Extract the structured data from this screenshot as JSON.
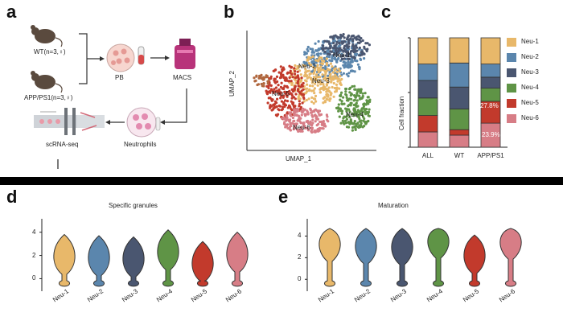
{
  "panel_a": {
    "label": "a",
    "wt": "WT(n=3,♀)",
    "app": "APP/PS1(n=3,♀)",
    "pb": "PB",
    "macs": "MACS",
    "neutrophils": "Neutrophils",
    "scrnaseq": "scRNA-seq",
    "icons": [
      "mouse-icon",
      "mouse-icon",
      "blood-dish-icon",
      "tube-icon",
      "macs-column-icon",
      "neutrophil-dish-icon",
      "sequencer-icon"
    ]
  },
  "panel_b": {
    "label": "b",
    "xlabel": "UMAP_1",
    "ylabel": "UMAP_2",
    "clusters": [
      "Neu-1",
      "Neu-2",
      "Neu-3",
      "Neu-4",
      "Neu-5",
      "Neu-6"
    ]
  },
  "panel_c": {
    "label": "c",
    "ylabel": "Cell fraction",
    "legend": [
      "Neu-1",
      "Neu-2",
      "Neu-3",
      "Neu-4",
      "Neu-5",
      "Neu-6"
    ],
    "colors": [
      "#e8b86a",
      "#5b86ad",
      "#4a5670",
      "#5f9446",
      "#c23a2c",
      "#d77d86"
    ]
  },
  "panel_d": {
    "label": "d",
    "title": "Specific granules"
  },
  "panel_e": {
    "label": "e",
    "title": "Maturation"
  },
  "chart_data": [
    {
      "type": "bar",
      "ylabel": "Cell fraction",
      "categories": [
        "ALL",
        "WT",
        "APP/PS1"
      ],
      "series": [
        {
          "name": "Neu-1",
          "values": [
            0.24,
            0.23,
            0.24
          ]
        },
        {
          "name": "Neu-2",
          "values": [
            0.15,
            0.22,
            0.12
          ]
        },
        {
          "name": "Neu-3",
          "values": [
            0.16,
            0.2,
            0.1
          ]
        },
        {
          "name": "Neu-4",
          "values": [
            0.16,
            0.19,
            0.12
          ]
        },
        {
          "name": "Neu-5",
          "values": [
            0.15,
            0.05,
            0.2
          ]
        },
        {
          "name": "Neu-6",
          "values": [
            0.14,
            0.11,
            0.22
          ]
        }
      ],
      "annotations": [
        "27.8%",
        "23.9%"
      ],
      "ylim": [
        0,
        1
      ]
    },
    {
      "type": "violin",
      "title": "Specific granules",
      "categories": [
        "Neu-1",
        "Neu-2",
        "Neu-3",
        "Neu-4",
        "Neu-5",
        "Neu-6"
      ],
      "yticks": [
        0,
        2,
        4
      ],
      "ylim": [
        -0.8,
        4.6
      ],
      "colors": [
        "#e8b86a",
        "#5b86ad",
        "#4a5670",
        "#5f9446",
        "#c23a2c",
        "#d77d86"
      ],
      "medians": [
        1.9,
        1.8,
        1.7,
        2.3,
        1.3,
        2.1
      ]
    },
    {
      "type": "violin",
      "title": "Maturation",
      "categories": [
        "Neu-1",
        "Neu-2",
        "Neu-3",
        "Neu-4",
        "Neu-5",
        "Neu-6"
      ],
      "yticks": [
        0,
        2,
        4
      ],
      "ylim": [
        -0.8,
        5.0
      ],
      "colors": [
        "#e8b86a",
        "#5b86ad",
        "#4a5670",
        "#5f9446",
        "#c23a2c",
        "#d77d86"
      ],
      "medians": [
        3.3,
        3.1,
        3.0,
        3.6,
        2.2,
        3.5
      ]
    }
  ]
}
